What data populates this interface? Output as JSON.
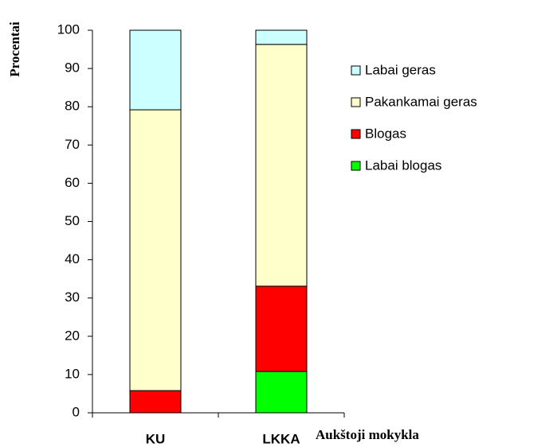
{
  "chart_data": {
    "type": "stacked_bar",
    "y_label": "Procentai",
    "x_label": "Aukštoji mokykla",
    "categories": [
      "KU",
      "LKKA"
    ],
    "series": [
      {
        "name": "Labai geras",
        "color": "#ccffff",
        "values": [
          20.8,
          3.7
        ]
      },
      {
        "name": "Pakankamai geras",
        "color": "#ffffcc",
        "values": [
          73.4,
          63.2
        ]
      },
      {
        "name": "Blogas",
        "color": "#ff0000",
        "values": [
          5.8,
          22.3
        ]
      },
      {
        "name": "Labai blogas",
        "color": "#00ff00",
        "values": [
          0,
          10.8
        ]
      }
    ],
    "ylim": [
      0,
      100
    ],
    "yticks": [
      0,
      10,
      20,
      30,
      40,
      50,
      60,
      70,
      80,
      90,
      100
    ],
    "legend": "right"
  }
}
